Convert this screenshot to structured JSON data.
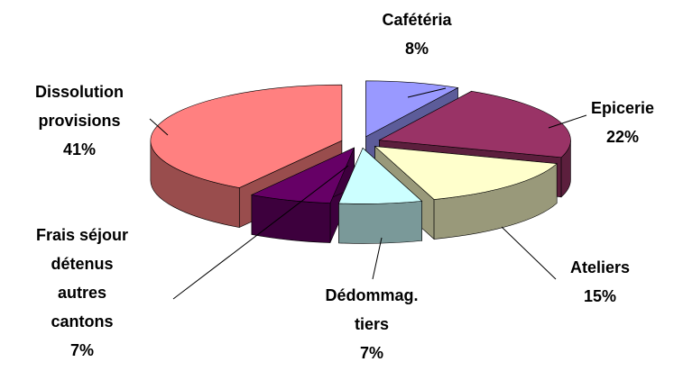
{
  "chart_data": {
    "type": "pie",
    "three_d": true,
    "exploded": true,
    "categories": [
      "Cafétéria",
      "Epicerie",
      "Ateliers",
      "Dédommag. tiers",
      "Frais séjour détenus autres cantons",
      "Dissolution provisions"
    ],
    "values": [
      8,
      22,
      15,
      7,
      7,
      41
    ],
    "value_labels": [
      "8%",
      "22%",
      "15%",
      "7%",
      "7%",
      "41%"
    ],
    "colors": [
      "#9999ff",
      "#993366",
      "#ffffcc",
      "#ccffff",
      "#660066",
      "#ff8080"
    ]
  }
}
